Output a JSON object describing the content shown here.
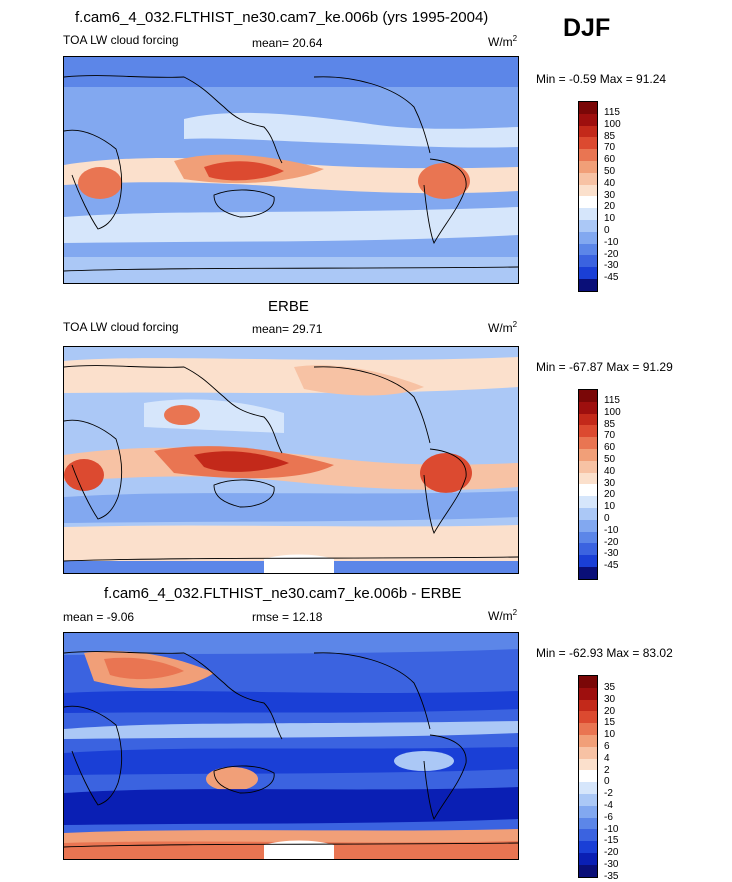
{
  "figure": {
    "season": "DJF",
    "colors": {
      "main_scale": [
        "#0a0f78",
        "#0a1fb4",
        "#1a3fd6",
        "#3b63e0",
        "#5c86e8",
        "#82a8f0",
        "#abc8f6",
        "#d6e6fb",
        "#ffffff",
        "#fbe0cc",
        "#f7c2a4",
        "#f19f78",
        "#e97552",
        "#dc4a30",
        "#c3291a",
        "#9e0f0e",
        "#7a0707"
      ],
      "diff_scale": [
        "#0a0f78",
        "#0a1fb4",
        "#1a3fd6",
        "#3b63e0",
        "#5c86e8",
        "#82a8f0",
        "#abc8f6",
        "#d6e6fb",
        "#ffffff",
        "#fbe0cc",
        "#f7c2a4",
        "#f19f78",
        "#e97552",
        "#dc4a30",
        "#c3291a",
        "#9e0f0e",
        "#7a0707"
      ]
    }
  },
  "chart_data": [
    {
      "type": "heatmap",
      "title": "f.cam6_4_032.FLTHIST_ne30.cam7_ke.006b (yrs 1995-2004)",
      "left_label": "TOA LW cloud forcing",
      "center_label": "mean=  20.64",
      "units_base": "W/m",
      "units_exp": "2",
      "stats": "Min =  -0.59 Max =  91.24",
      "mean": 20.64,
      "min": -0.59,
      "max": 91.24,
      "colorbar_levels": [
        "115",
        "100",
        "85",
        "70",
        "60",
        "50",
        "40",
        "30",
        "20",
        "10",
        "0",
        "-10",
        "-20",
        "-30",
        "-45"
      ]
    },
    {
      "type": "heatmap",
      "title": "ERBE",
      "left_label": "TOA LW cloud forcing",
      "center_label": "mean=  29.71",
      "units_base": "W/m",
      "units_exp": "2",
      "stats": "Min = -67.87 Max =  91.29",
      "mean": 29.71,
      "min": -67.87,
      "max": 91.29,
      "colorbar_levels": [
        "115",
        "100",
        "85",
        "70",
        "60",
        "50",
        "40",
        "30",
        "20",
        "10",
        "0",
        "-10",
        "-20",
        "-30",
        "-45"
      ]
    },
    {
      "type": "heatmap",
      "title": "f.cam6_4_032.FLTHIST_ne30.cam7_ke.006b - ERBE",
      "left_label": "mean =  -9.06",
      "center_label": "rmse =  12.18",
      "units_base": "W/m",
      "units_exp": "2",
      "stats": "Min = -62.93 Max =  83.02",
      "mean": -9.06,
      "rmse": 12.18,
      "min": -62.93,
      "max": 83.02,
      "colorbar_levels": [
        "35",
        "30",
        "20",
        "15",
        "10",
        "6",
        "4",
        "2",
        "0",
        "-2",
        "-4",
        "-6",
        "-10",
        "-15",
        "-20",
        "-30",
        "-35"
      ]
    }
  ]
}
